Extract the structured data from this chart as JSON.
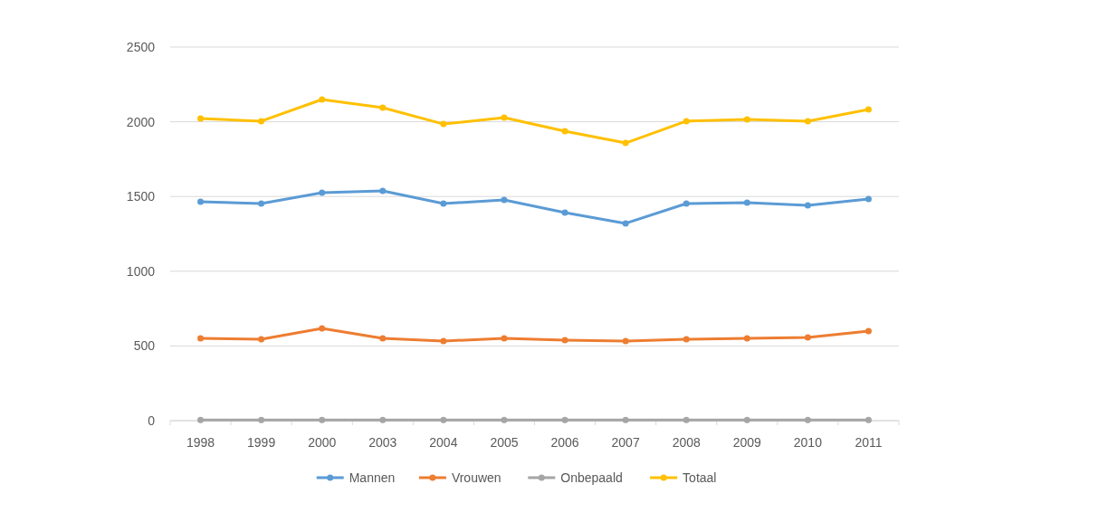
{
  "chart_data": {
    "type": "line",
    "categories": [
      "1998",
      "1999",
      "2000",
      "2003",
      "2004",
      "2005",
      "2006",
      "2007",
      "2008",
      "2009",
      "2010",
      "2011"
    ],
    "series": [
      {
        "name": "Mannen",
        "color": "#5b9bd5",
        "values": [
          1465,
          1453,
          1525,
          1538,
          1453,
          1477,
          1392,
          1320,
          1453,
          1459,
          1441,
          1483
        ]
      },
      {
        "name": "Vrouwen",
        "color": "#ed7d31",
        "values": [
          551,
          545,
          617,
          551,
          533,
          551,
          539,
          533,
          545,
          551,
          557,
          599
        ]
      },
      {
        "name": "Onbepaald",
        "color": "#a5a5a5",
        "values": [
          5,
          5,
          5,
          5,
          5,
          5,
          5,
          5,
          5,
          5,
          5,
          5
        ]
      },
      {
        "name": "Totaal",
        "color": "#ffc000",
        "values": [
          2022,
          2004,
          2149,
          2094,
          1985,
          2028,
          1937,
          1858,
          2004,
          2016,
          2004,
          2082
        ]
      }
    ],
    "ylim": [
      0,
      2500
    ],
    "yticks": [
      0,
      500,
      1000,
      1500,
      2000,
      2500
    ],
    "grid": "y",
    "legend": "bottom",
    "marker": "circle",
    "line_style": "solid"
  }
}
